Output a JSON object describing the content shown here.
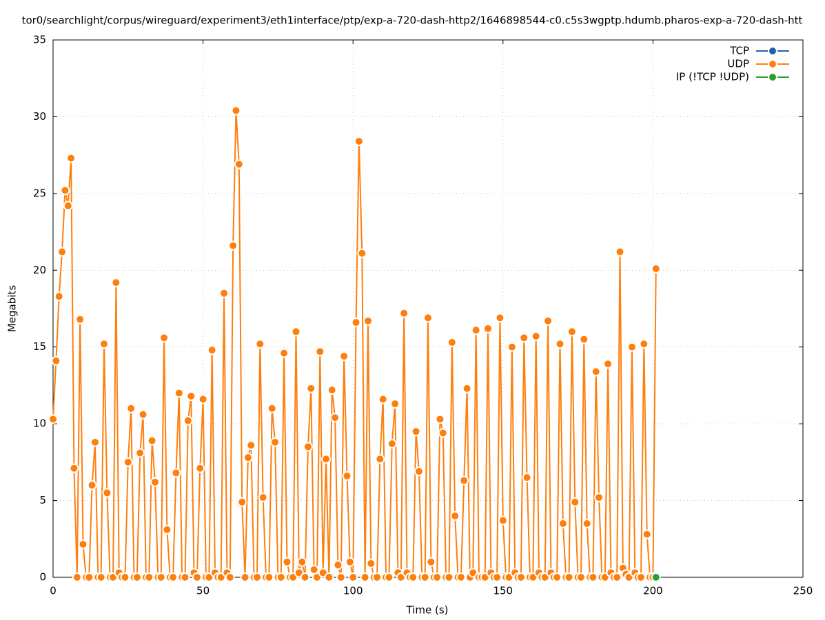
{
  "chart_data": {
    "type": "line",
    "title": "tor0/searchlight/corpus/wireguard/experiment3/eth1interface/ptp/exp-a-720-dash-http2/1646898544-c0.c5s3wgptp.hdumb.pharos-exp-a-720-dash-htt",
    "xlabel": "Time (s)",
    "ylabel": "Megabits",
    "xlim": [
      0,
      250
    ],
    "xticks": [
      0,
      50,
      100,
      150,
      200,
      250
    ],
    "ylim": [
      0,
      35
    ],
    "yticks": [
      0,
      5,
      10,
      15,
      20,
      25,
      30,
      35
    ],
    "grid": true,
    "legend": "top-right",
    "series": [
      {
        "name": "TCP",
        "color": "#1f62a8",
        "x": [],
        "values": []
      },
      {
        "name": "UDP",
        "color": "#ff7f0e",
        "x": [
          0,
          1,
          2,
          3,
          4,
          5,
          6,
          7,
          8,
          9,
          10,
          11,
          12,
          13,
          14,
          15,
          16,
          17,
          18,
          19,
          20,
          21,
          22,
          23,
          24,
          25,
          26,
          27,
          28,
          29,
          30,
          31,
          32,
          33,
          34,
          35,
          36,
          37,
          38,
          39,
          40,
          41,
          42,
          43,
          44,
          45,
          46,
          47,
          48,
          49,
          50,
          51,
          52,
          53,
          54,
          55,
          56,
          57,
          58,
          59,
          60,
          61,
          62,
          63,
          64,
          65,
          66,
          67,
          68,
          69,
          70,
          71,
          72,
          73,
          74,
          75,
          76,
          77,
          78,
          79,
          80,
          81,
          82,
          83,
          84,
          85,
          86,
          87,
          88,
          89,
          90,
          91,
          92,
          93,
          94,
          95,
          96,
          97,
          98,
          99,
          100,
          101,
          102,
          103,
          104,
          105,
          106,
          107,
          108,
          109,
          110,
          111,
          112,
          113,
          114,
          115,
          116,
          117,
          118,
          119,
          120,
          121,
          122,
          123,
          124,
          125,
          126,
          127,
          128,
          129,
          130,
          131,
          132,
          133,
          134,
          135,
          136,
          137,
          138,
          139,
          140,
          141,
          142,
          143,
          144,
          145,
          146,
          147,
          148,
          149,
          150,
          151,
          152,
          153,
          154,
          155,
          156,
          157,
          158,
          159,
          160,
          161,
          162,
          163,
          164,
          165,
          166,
          167,
          168,
          169,
          170,
          171,
          172,
          173,
          174,
          175,
          176,
          177,
          178,
          179,
          180,
          181,
          182,
          183,
          184,
          185,
          186,
          187,
          188,
          189,
          190,
          191,
          192,
          193,
          194,
          195,
          196,
          197,
          198,
          199,
          200,
          201
        ],
        "values": [
          10.3,
          14.1,
          18.3,
          21.2,
          25.2,
          24.2,
          27.3,
          7.1,
          0,
          16.8,
          2.15,
          0,
          0,
          6.0,
          8.8,
          0,
          0,
          15.2,
          5.5,
          0,
          0,
          19.2,
          0.3,
          0,
          0,
          7.5,
          11.0,
          0,
          0,
          8.1,
          10.6,
          0,
          0,
          8.9,
          6.2,
          0,
          0,
          15.6,
          3.1,
          0,
          0,
          6.8,
          12.0,
          0,
          0,
          10.2,
          11.8,
          0.3,
          0,
          7.1,
          11.6,
          0,
          0,
          14.8,
          0.3,
          0,
          0,
          18.5,
          0.3,
          0,
          21.6,
          30.4,
          26.9,
          4.9,
          0,
          7.8,
          8.6,
          0,
          0,
          15.2,
          5.2,
          0,
          0,
          11.0,
          8.8,
          0,
          0,
          14.6,
          1.0,
          0,
          0,
          16.0,
          0.3,
          1.0,
          0,
          8.5,
          12.3,
          0.5,
          0,
          14.7,
          0.3,
          7.7,
          0,
          12.2,
          10.4,
          0.8,
          0,
          14.4,
          6.6,
          1.0,
          0,
          16.6,
          28.4,
          21.1,
          0,
          16.7,
          0.9,
          0,
          0,
          7.7,
          11.6,
          0,
          0,
          8.7,
          11.3,
          0.3,
          0,
          17.2,
          0.3,
          0,
          0,
          9.5,
          6.9,
          0,
          0,
          16.9,
          1.0,
          0,
          0,
          10.3,
          9.4,
          0,
          0,
          15.3,
          4.0,
          0,
          0,
          6.3,
          12.3,
          0,
          0.3,
          16.1,
          0,
          0,
          0,
          16.2,
          0.3,
          0,
          0,
          16.9,
          3.7,
          0,
          0,
          15.0,
          0.3,
          0,
          0,
          15.6,
          6.5,
          0,
          0,
          15.7,
          0.3,
          0,
          0,
          16.7,
          0.3,
          0,
          0,
          15.2,
          3.5,
          0,
          0,
          16.0,
          4.9,
          0,
          0,
          15.5,
          3.5,
          0,
          0,
          13.4,
          5.2,
          0,
          0,
          13.9,
          0.3,
          0,
          0,
          21.2,
          0.6,
          0.2,
          0,
          15.0,
          0.3,
          0,
          0,
          15.2,
          2.8,
          0,
          0,
          20.1
        ]
      },
      {
        "name": "IP (!TCP  !UDP)",
        "color": "#2ca02c",
        "x": [
          201
        ],
        "values": [
          0
        ]
      }
    ]
  }
}
